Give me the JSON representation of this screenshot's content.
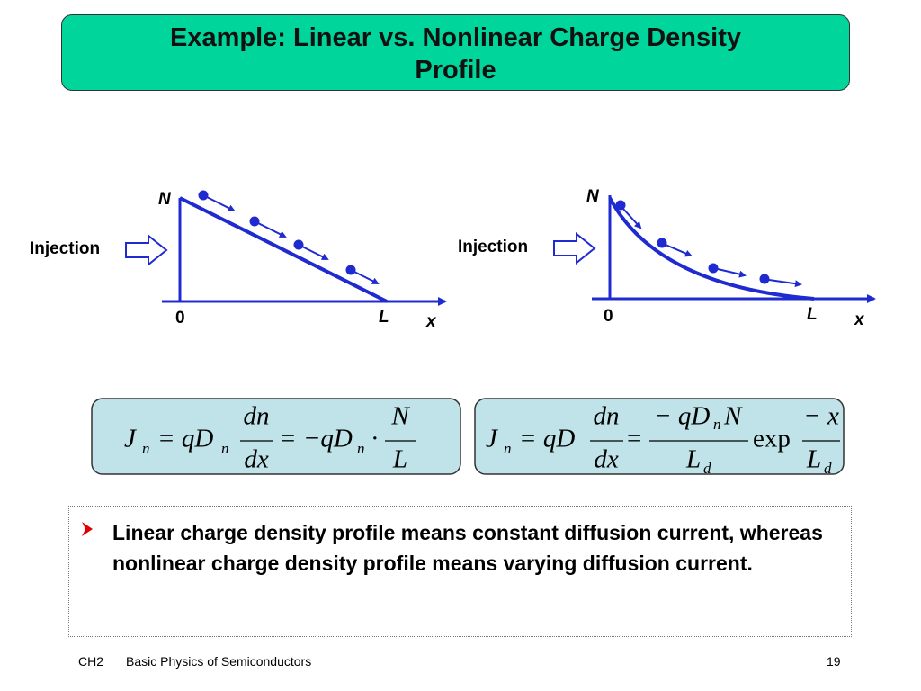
{
  "title": [
    "Example:  Linear vs. Nonlinear Charge Density",
    "Profile"
  ],
  "diagrams": [
    {
      "injection": "Injection",
      "y_label": "N",
      "origin": "0",
      "end_label": "L",
      "x_label": "x"
    },
    {
      "injection": "Injection",
      "y_label": "N",
      "origin": "0",
      "end_label": "L",
      "x_label": "x"
    }
  ],
  "equations": [
    [
      "J",
      "n",
      "= qD",
      "n",
      "dn",
      "dx",
      "= −qD",
      "n",
      "·",
      "N",
      "L"
    ],
    [
      "J",
      "n",
      "= qD",
      "dn",
      "dx",
      "=",
      "− qD",
      "n",
      "N",
      "L",
      "d",
      "exp",
      "− x",
      "L",
      "d"
    ]
  ],
  "bullet": "Linear charge density profile means constant diffusion current, whereas nonlinear charge density profile means varying diffusion current.",
  "footer": {
    "chapter": "CH2",
    "course": "Basic Physics of Semiconductors",
    "page": "19"
  }
}
